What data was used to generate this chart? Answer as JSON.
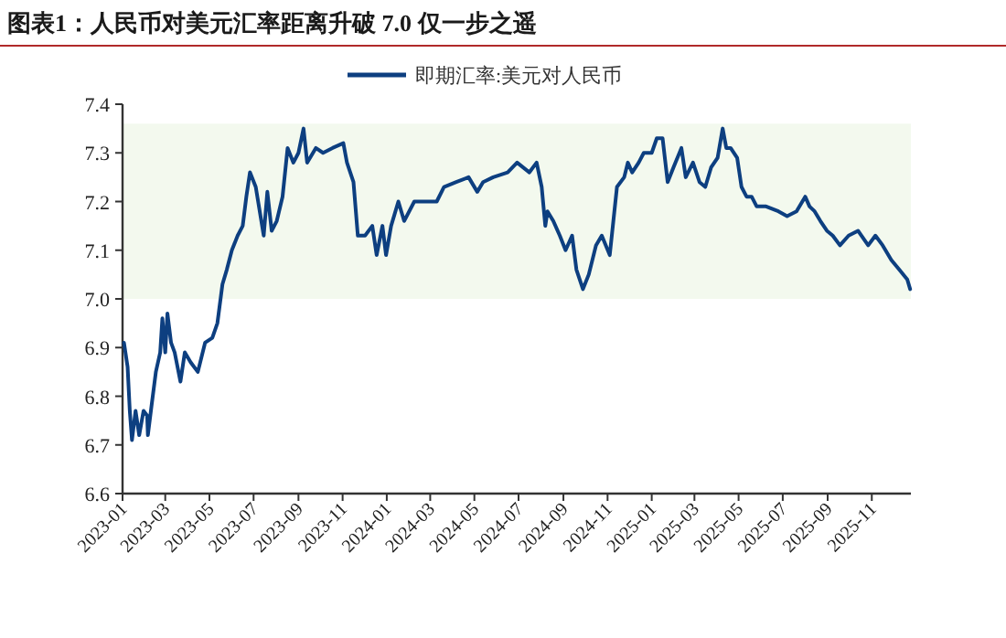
{
  "chart_data": {
    "type": "line",
    "title": "图表1：人民币对美元汇率距离升破 7.0 仅一步之遥",
    "xlim": [
      "2023-01-01",
      "2025-12-25"
    ],
    "xticks": [
      "2023-01",
      "2023-03",
      "2023-05",
      "2023-07",
      "2023-09",
      "2023-11",
      "2024-01",
      "2024-03",
      "2024-05",
      "2024-07",
      "2024-09",
      "2024-11",
      "2025-01",
      "2025-03",
      "2025-05",
      "2025-07",
      "2025-09",
      "2025-11"
    ],
    "ylim": [
      6.6,
      7.4
    ],
    "yticks": [
      6.6,
      6.7,
      6.8,
      6.9,
      {
        "value": 7.0,
        "label": "7.0"
      },
      7.1,
      7.2,
      7.3,
      7.4
    ],
    "legend": "top",
    "grid": false,
    "bands": [
      {
        "axis": "y",
        "from": 7.0,
        "to": 7.36,
        "color": "#f3f9ee"
      }
    ],
    "series": [
      {
        "name": "即期汇率:美元对人民币",
        "color": "#0d3f80",
        "x": [
          "2023-01-03",
          "2023-01-08",
          "2023-01-11",
          "2023-01-14",
          "2023-01-19",
          "2023-01-24",
          "2023-01-30",
          "2023-02-04",
          "2023-02-05",
          "2023-02-10",
          "2023-02-16",
          "2023-02-22",
          "2023-02-25",
          "2023-03-01",
          "2023-03-04",
          "2023-03-09",
          "2023-03-14",
          "2023-03-22",
          "2023-03-28",
          "2023-04-05",
          "2023-04-15",
          "2023-04-25",
          "2023-05-05",
          "2023-05-12",
          "2023-05-19",
          "2023-05-25",
          "2023-06-01",
          "2023-06-09",
          "2023-06-16",
          "2023-06-21",
          "2023-06-26",
          "2023-07-04",
          "2023-07-15",
          "2023-07-20",
          "2023-07-26",
          "2023-08-02",
          "2023-08-10",
          "2023-08-17",
          "2023-08-25",
          "2023-09-01",
          "2023-09-08",
          "2023-09-13",
          "2023-09-25",
          "2023-10-05",
          "2023-10-18",
          "2023-11-02",
          "2023-11-07",
          "2023-11-16",
          "2023-11-22",
          "2023-12-02",
          "2023-12-12",
          "2023-12-18",
          "2023-12-26",
          "2023-12-31",
          "2024-01-07",
          "2024-01-17",
          "2024-01-25",
          "2024-02-08",
          "2024-02-24",
          "2024-03-10",
          "2024-03-20",
          "2024-04-06",
          "2024-04-23",
          "2024-05-05",
          "2024-05-13",
          "2024-05-27",
          "2024-06-16",
          "2024-06-29",
          "2024-07-16",
          "2024-07-26",
          "2024-08-02",
          "2024-08-07",
          "2024-08-10",
          "2024-08-18",
          "2024-08-27",
          "2024-09-04",
          "2024-09-13",
          "2024-09-19",
          "2024-09-28",
          "2024-10-06",
          "2024-10-16",
          "2024-10-24",
          "2024-11-04",
          "2024-11-09",
          "2024-11-14",
          "2024-11-24",
          "2024-11-29",
          "2024-12-05",
          "2024-12-14",
          "2024-12-21",
          "2025-01-01",
          "2025-01-08",
          "2025-01-16",
          "2025-01-23",
          "2025-01-31",
          "2025-02-11",
          "2025-02-17",
          "2025-02-27",
          "2025-03-08",
          "2025-03-16",
          "2025-03-24",
          "2025-04-02",
          "2025-04-09",
          "2025-04-14",
          "2025-04-20",
          "2025-04-29",
          "2025-05-05",
          "2025-05-12",
          "2025-05-19",
          "2025-05-26",
          "2025-06-08",
          "2025-06-25",
          "2025-07-07",
          "2025-07-20",
          "2025-08-01",
          "2025-08-07",
          "2025-08-14",
          "2025-08-22",
          "2025-08-31",
          "2025-09-08",
          "2025-09-18",
          "2025-09-30",
          "2025-10-13",
          "2025-10-27",
          "2025-11-06",
          "2025-11-16",
          "2025-11-28",
          "2025-12-09",
          "2025-12-20",
          "2025-12-24"
        ],
        "values": [
          6.91,
          6.86,
          6.77,
          6.71,
          6.77,
          6.72,
          6.77,
          6.76,
          6.72,
          6.78,
          6.85,
          6.89,
          6.96,
          6.89,
          6.97,
          6.91,
          6.89,
          6.83,
          6.89,
          6.87,
          6.85,
          6.91,
          6.92,
          6.95,
          7.03,
          7.06,
          7.1,
          7.13,
          7.15,
          7.21,
          7.26,
          7.23,
          7.13,
          7.22,
          7.14,
          7.16,
          7.21,
          7.31,
          7.28,
          7.3,
          7.35,
          7.28,
          7.31,
          7.3,
          7.31,
          7.32,
          7.28,
          7.24,
          7.13,
          7.13,
          7.15,
          7.09,
          7.15,
          7.09,
          7.15,
          7.2,
          7.16,
          7.2,
          7.2,
          7.2,
          7.23,
          7.24,
          7.25,
          7.22,
          7.24,
          7.25,
          7.26,
          7.28,
          7.26,
          7.28,
          7.23,
          7.15,
          7.18,
          7.16,
          7.13,
          7.1,
          7.13,
          7.06,
          7.02,
          7.05,
          7.11,
          7.13,
          7.09,
          7.16,
          7.23,
          7.25,
          7.28,
          7.26,
          7.28,
          7.3,
          7.3,
          7.33,
          7.33,
          7.24,
          7.27,
          7.31,
          7.25,
          7.28,
          7.24,
          7.23,
          7.27,
          7.29,
          7.35,
          7.31,
          7.31,
          7.29,
          7.23,
          7.21,
          7.21,
          7.19,
          7.19,
          7.18,
          7.17,
          7.18,
          7.21,
          7.19,
          7.18,
          7.16,
          7.14,
          7.13,
          7.11,
          7.13,
          7.14,
          7.11,
          7.13,
          7.11,
          7.08,
          7.06,
          7.04,
          7.02
        ]
      }
    ]
  }
}
